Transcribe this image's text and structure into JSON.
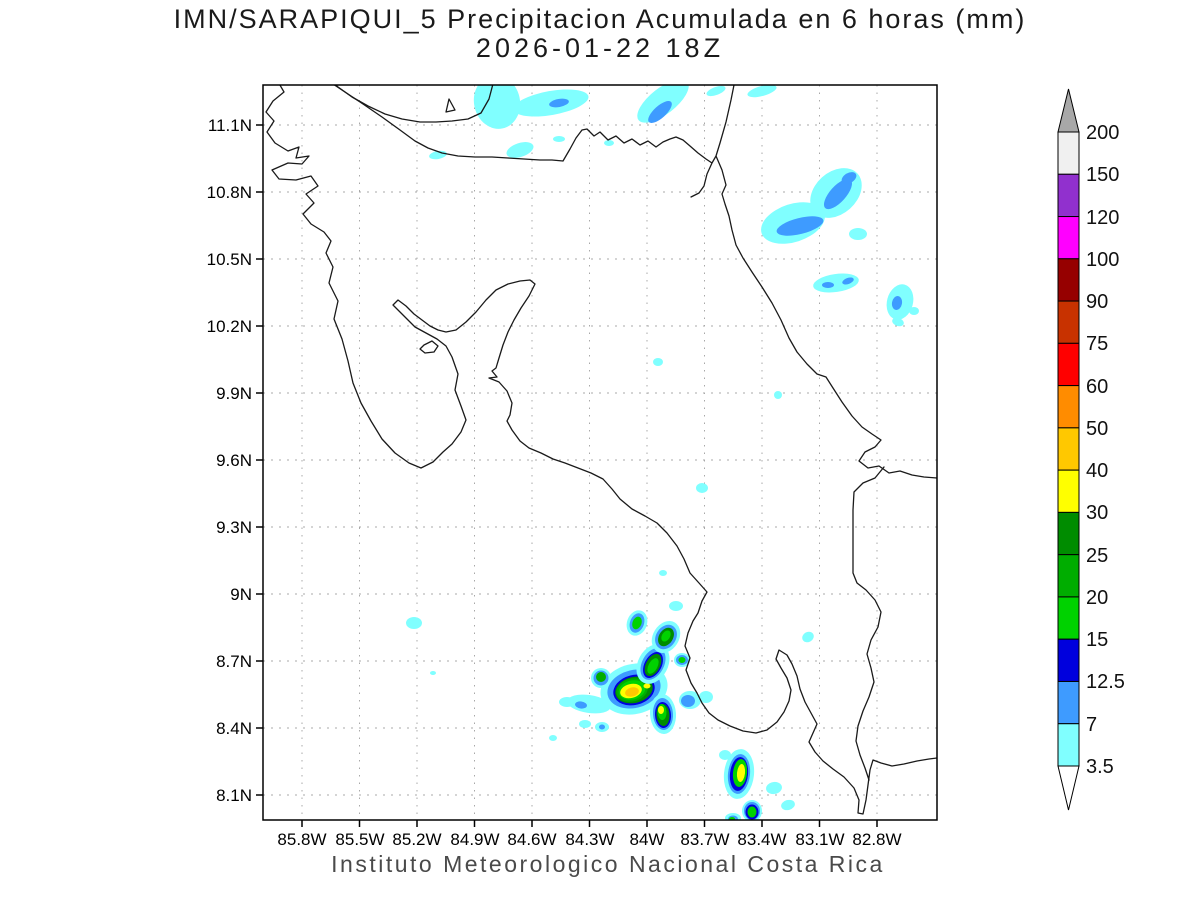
{
  "title": {
    "line1": "IMN/SARAPIQUI_5 Precipitacion Acumulada en 6 horas (mm)",
    "line2": "2026-01-22 18Z"
  },
  "caption": "Instituto Meteorologico Nacional Costa Rica",
  "axes": {
    "y_ticks": [
      "11.1N",
      "10.8N",
      "10.5N",
      "10.2N",
      "9.9N",
      "9.6N",
      "9.3N",
      "9N",
      "8.7N",
      "8.4N",
      "8.1N"
    ],
    "x_ticks": [
      "85.8W",
      "85.5W",
      "85.2W",
      "84.9W",
      "84.6W",
      "84.3W",
      "84W",
      "83.7W",
      "83.4W",
      "83.1W",
      "82.8W"
    ]
  },
  "colorbar": {
    "labels": [
      "200",
      "150",
      "120",
      "100",
      "90",
      "75",
      "60",
      "50",
      "40",
      "30",
      "25",
      "20",
      "15",
      "12.5",
      "7",
      "3.5"
    ],
    "segment_colors": [
      "#F0F0F0",
      "#9130CE",
      "#FF00FF",
      "#960000",
      "#C83200",
      "#FF0000",
      "#FF8C00",
      "#FFC800",
      "#FFFF00",
      "#008C00",
      "#00AD00",
      "#00D200",
      "#0000DD",
      "#3E9BFF",
      "#80FFFF"
    ],
    "arrow_top_color": "#A8A8A8",
    "arrow_bottom_color": "#FFFFFF"
  },
  "chart_data": {
    "type": "contour-map",
    "region": "Costa Rica",
    "variable": "Precipitacion Acumulada en 6 horas (mm)",
    "model": "IMN/SARAPIQUI_5",
    "valid_time": "2026-01-22 18Z",
    "lon_range_W": [
      86.0,
      82.45
    ],
    "lat_range_N": [
      8.0,
      11.28
    ],
    "levels_mm": [
      3.5,
      7,
      12.5,
      15,
      20,
      25,
      30,
      40,
      50,
      60,
      75,
      90,
      100,
      120,
      150,
      200
    ],
    "palette": {
      "cyan": "#80FFFF",
      "blue": "#3E9BFF",
      "dblue": "#0000DD",
      "dgreen": "#008C00",
      "green": "#00AD00",
      "bgreen": "#00D200",
      "yellow": "#FFFF00",
      "gold": "#FFC800"
    },
    "precip_cells": [
      {
        "id": "north-coast-patch",
        "layers": [
          [
            "cyan",
            497,
            102,
            23,
            27,
            -12
          ]
        ]
      },
      {
        "id": "north-coast-tail",
        "layers": [
          [
            "cyan",
            551,
            103,
            38,
            12,
            -10
          ],
          [
            "blue",
            559,
            103,
            10,
            4,
            -10
          ]
        ]
      },
      {
        "id": "north-streak",
        "layers": [
          [
            "cyan",
            663,
            101,
            31,
            13,
            -38
          ],
          [
            "blue",
            660,
            112,
            15,
            6,
            -42
          ]
        ]
      },
      {
        "id": "north-dash-1",
        "layers": [
          [
            "cyan",
            716,
            91,
            10,
            4,
            -20
          ]
        ]
      },
      {
        "id": "north-dash-2",
        "layers": [
          [
            "cyan",
            762,
            91,
            15,
            5,
            -15
          ]
        ]
      },
      {
        "id": "inland-dash-1",
        "layers": [
          [
            "cyan",
            438,
            155,
            9,
            4,
            -10
          ]
        ]
      },
      {
        "id": "inland-blob-1",
        "layers": [
          [
            "cyan",
            520,
            150,
            14,
            7,
            -18
          ]
        ]
      },
      {
        "id": "inland-dot-1",
        "layers": [
          [
            "cyan",
            559,
            139,
            6,
            3,
            0
          ]
        ]
      },
      {
        "id": "inland-dot-2",
        "layers": [
          [
            "cyan",
            609,
            143,
            5,
            3,
            0
          ]
        ]
      },
      {
        "id": "ne-complex-west",
        "layers": [
          [
            "cyan",
            793,
            223,
            33,
            19,
            -18
          ],
          [
            "blue",
            800,
            226,
            24,
            8,
            -14
          ]
        ]
      },
      {
        "id": "ne-complex-east",
        "layers": [
          [
            "cyan",
            836,
            193,
            29,
            21,
            -42
          ],
          [
            "blue",
            838,
            194,
            19,
            8,
            -48
          ],
          [
            "blue",
            849,
            178,
            8,
            5,
            -30
          ]
        ]
      },
      {
        "id": "ne-oval",
        "layers": [
          [
            "cyan",
            858,
            234,
            9,
            6,
            0
          ]
        ]
      },
      {
        "id": "ne-band",
        "layers": [
          [
            "cyan",
            836,
            283,
            23,
            9,
            -8
          ],
          [
            "blue",
            828,
            285,
            6,
            3,
            0
          ],
          [
            "blue",
            848,
            281,
            6,
            3,
            -20
          ]
        ]
      },
      {
        "id": "ne-crescent",
        "layers": [
          [
            "cyan",
            900,
            302,
            13,
            18,
            15
          ],
          [
            "blue",
            897,
            303,
            5,
            7,
            10
          ]
        ]
      },
      {
        "id": "ne-dot-1",
        "layers": [
          [
            "cyan",
            914,
            311,
            5,
            4,
            0
          ]
        ]
      },
      {
        "id": "ne-dot-2",
        "layers": [
          [
            "cyan",
            898,
            322,
            6,
            4,
            20
          ]
        ]
      },
      {
        "id": "mid-dot-1",
        "layers": [
          [
            "cyan",
            778,
            395,
            4,
            4,
            0
          ]
        ]
      },
      {
        "id": "mid-dot-2",
        "layers": [
          [
            "cyan",
            658,
            362,
            5,
            4,
            0
          ]
        ]
      },
      {
        "id": "mid-dot-3",
        "layers": [
          [
            "cyan",
            702,
            488,
            6,
            5,
            0
          ]
        ]
      },
      {
        "id": "west-lone-dot",
        "layers": [
          [
            "cyan",
            414,
            623,
            8,
            6,
            0
          ]
        ]
      },
      {
        "id": "south-main",
        "layers": [
          [
            "cyan",
            634,
            689,
            34,
            25,
            -14
          ],
          [
            "blue",
            634,
            689,
            27,
            19,
            -14
          ],
          [
            "dblue",
            634,
            690,
            21,
            15,
            -14
          ],
          [
            "dgreen",
            634,
            690,
            19,
            13,
            -14
          ],
          [
            "green",
            632,
            690,
            16,
            11.5,
            -14
          ],
          [
            "bgreen",
            632,
            690,
            13.5,
            9.5,
            -14
          ],
          [
            "yellow",
            631,
            691,
            11,
            7,
            -14
          ],
          [
            "gold",
            632,
            692,
            7,
            4.5,
            -14
          ],
          [
            "yellow",
            647,
            686,
            3.5,
            2.5,
            0
          ]
        ]
      },
      {
        "id": "south-hook",
        "layers": [
          [
            "cyan",
            653,
            664,
            15,
            21,
            28
          ],
          [
            "blue",
            653,
            664,
            11,
            17,
            28
          ],
          [
            "dblue",
            653,
            665,
            8.5,
            14,
            28
          ],
          [
            "dgreen",
            653,
            665,
            7,
            12,
            28
          ],
          [
            "bgreen",
            653,
            666,
            4.5,
            8.5,
            28
          ]
        ]
      },
      {
        "id": "south-n1",
        "layers": [
          [
            "cyan",
            637,
            623,
            10,
            13,
            20
          ],
          [
            "blue",
            637,
            623,
            7,
            10,
            20
          ],
          [
            "bgreen",
            637,
            623,
            4.5,
            6.5,
            20
          ]
        ]
      },
      {
        "id": "south-n2",
        "layers": [
          [
            "cyan",
            666,
            637,
            13,
            17,
            32
          ],
          [
            "blue",
            666,
            637,
            10,
            13,
            32
          ],
          [
            "dgreen",
            666,
            637,
            7,
            10,
            32
          ],
          [
            "bgreen",
            666,
            636,
            4,
            6,
            32
          ]
        ]
      },
      {
        "id": "south-dot-n",
        "layers": [
          [
            "cyan",
            676,
            606,
            7,
            5,
            0
          ]
        ]
      },
      {
        "id": "south-small-ring",
        "layers": [
          [
            "cyan",
            682,
            660,
            8,
            7,
            0
          ],
          [
            "blue",
            682,
            660,
            6,
            5,
            0
          ],
          [
            "bgreen",
            682,
            660,
            3.5,
            3,
            0
          ]
        ]
      },
      {
        "id": "south-left",
        "layers": [
          [
            "cyan",
            601,
            678,
            10,
            10,
            0
          ],
          [
            "blue",
            601,
            678,
            7.5,
            7.5,
            0
          ],
          [
            "green",
            601,
            677,
            5,
            5,
            0
          ]
        ]
      },
      {
        "id": "south-s7",
        "layers": [
          [
            "cyan",
            663,
            714,
            13,
            20,
            -4
          ],
          [
            "blue",
            663,
            714,
            10,
            16,
            -4
          ],
          [
            "dblue",
            663,
            715,
            8,
            13,
            -4
          ],
          [
            "dgreen",
            663,
            715,
            6.5,
            11,
            -4
          ],
          [
            "bgreen",
            662,
            712,
            4.5,
            8,
            -4
          ],
          [
            "yellow",
            661,
            710,
            3,
            4,
            0
          ]
        ]
      },
      {
        "id": "west-arm",
        "layers": [
          [
            "cyan",
            589,
            704,
            22,
            9,
            8
          ],
          [
            "blue",
            581,
            705,
            6,
            3.5,
            8
          ]
        ]
      },
      {
        "id": "west-arm-end",
        "layers": [
          [
            "cyan",
            567,
            702,
            8,
            5,
            0
          ]
        ]
      },
      {
        "id": "south-dot-1",
        "layers": [
          [
            "cyan",
            585,
            724,
            6,
            4,
            0
          ]
        ]
      },
      {
        "id": "south-dot-2",
        "layers": [
          [
            "cyan",
            602,
            727,
            7,
            5,
            0
          ],
          [
            "blue",
            602,
            727,
            3,
            2.5,
            0
          ]
        ]
      },
      {
        "id": "south-east-1",
        "layers": [
          [
            "cyan",
            690,
            700,
            11,
            9,
            0
          ],
          [
            "blue",
            688,
            701,
            7,
            6,
            0
          ]
        ]
      },
      {
        "id": "south-east-2",
        "layers": [
          [
            "cyan",
            706,
            697,
            7,
            6,
            0
          ]
        ]
      },
      {
        "id": "tiny-1",
        "layers": [
          [
            "cyan",
            433,
            673,
            3,
            2,
            0
          ]
        ]
      },
      {
        "id": "tiny-2",
        "layers": [
          [
            "cyan",
            553,
            738,
            4,
            3,
            0
          ]
        ]
      },
      {
        "id": "tiny-3",
        "layers": [
          [
            "cyan",
            663,
            573,
            4,
            3,
            0
          ]
        ]
      },
      {
        "id": "se-main",
        "layers": [
          [
            "cyan",
            739,
            774,
            15,
            25,
            6
          ],
          [
            "blue",
            739,
            774,
            11,
            20,
            6
          ],
          [
            "dblue",
            739,
            774,
            9,
            17,
            6
          ],
          [
            "bgreen",
            740,
            773,
            7,
            14,
            6
          ],
          [
            "yellow",
            741,
            773,
            4,
            9,
            6
          ]
        ]
      },
      {
        "id": "se-below",
        "layers": [
          [
            "cyan",
            752,
            811,
            10,
            11,
            0
          ],
          [
            "blue",
            752,
            811,
            8,
            9,
            0
          ],
          [
            "dblue",
            752,
            812,
            6.5,
            7.5,
            0
          ],
          [
            "bgreen",
            752,
            812,
            4.5,
            5.5,
            0
          ]
        ]
      },
      {
        "id": "se-dot-1",
        "layers": [
          [
            "cyan",
            774,
            788,
            8,
            6,
            -10
          ]
        ]
      },
      {
        "id": "se-dash",
        "layers": [
          [
            "cyan",
            788,
            805,
            7,
            5,
            -15
          ]
        ]
      },
      {
        "id": "se-dot-2",
        "layers": [
          [
            "cyan",
            725,
            755,
            6,
            5,
            0
          ]
        ]
      },
      {
        "id": "se-bottom",
        "layers": [
          [
            "cyan",
            733,
            818,
            8,
            5,
            0
          ],
          [
            "blue",
            733,
            819,
            5,
            3.5,
            0
          ],
          [
            "bgreen",
            732,
            819,
            3,
            2,
            0
          ]
        ]
      },
      {
        "id": "se-dot-3",
        "layers": [
          [
            "cyan",
            808,
            637,
            6,
            5,
            -30
          ]
        ]
      }
    ]
  }
}
